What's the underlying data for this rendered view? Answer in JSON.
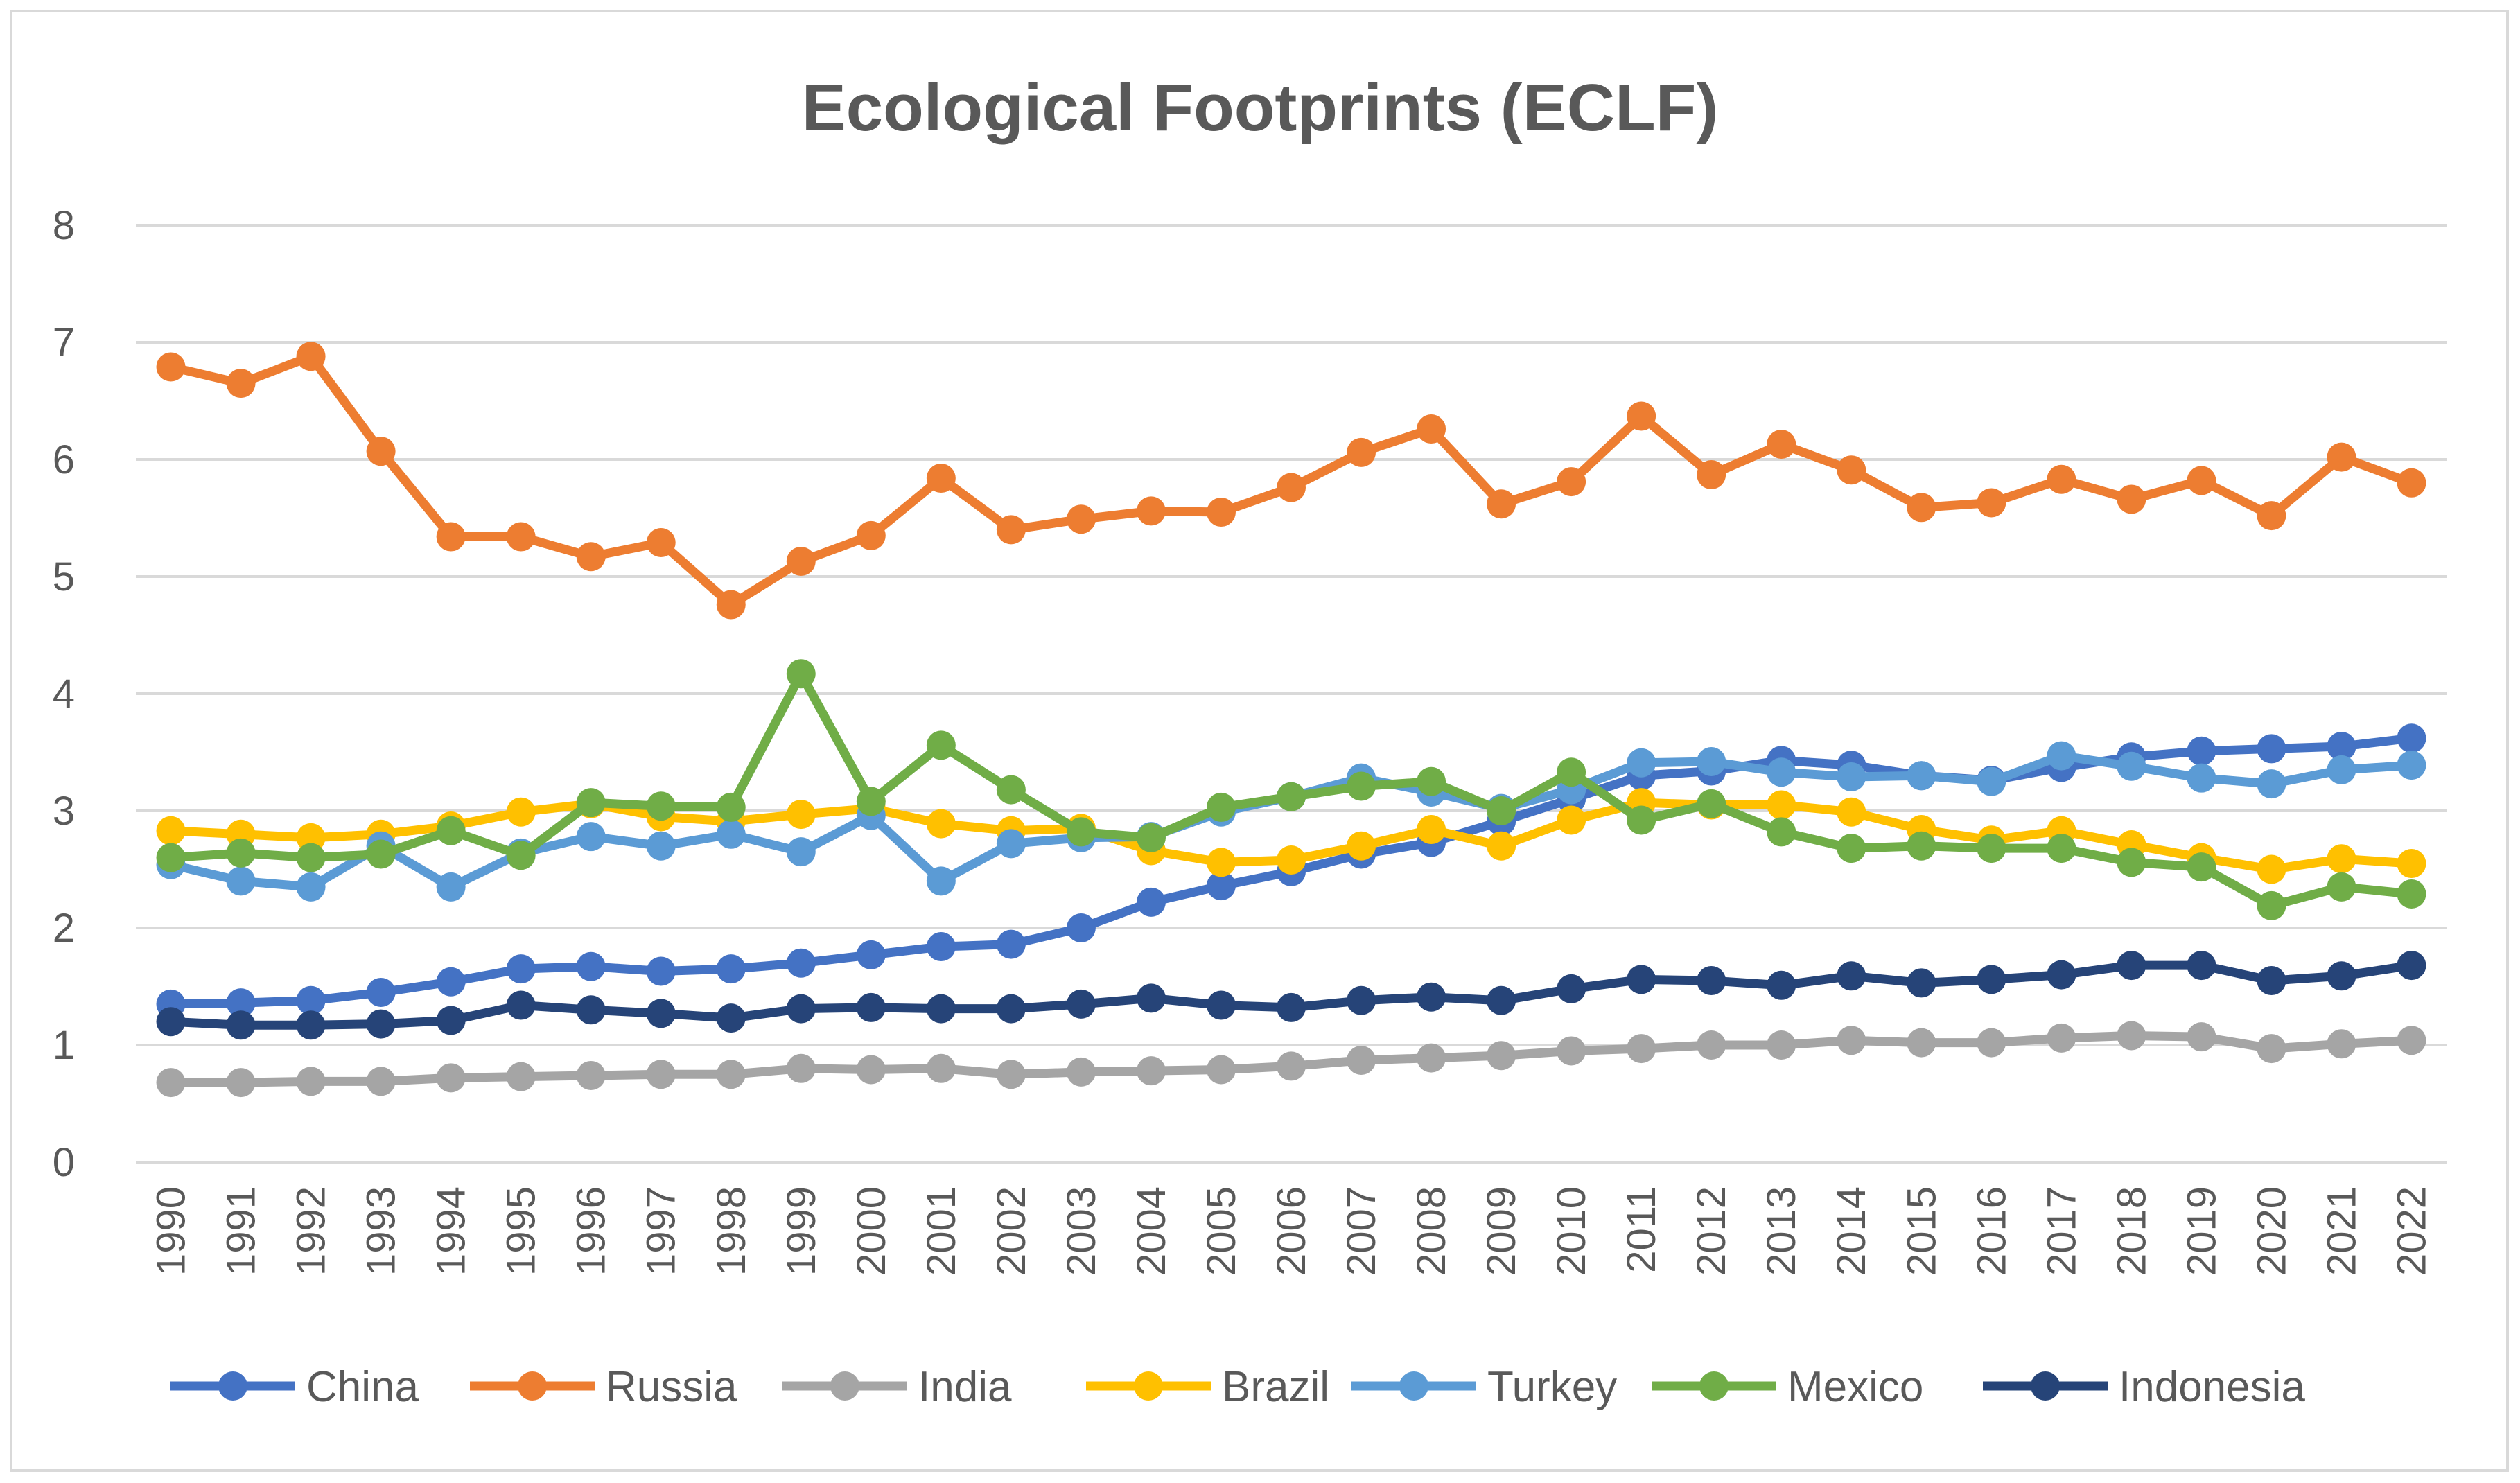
{
  "chart_data": {
    "type": "line",
    "title": "Ecological Footprints (ECLF)",
    "xlabel": "",
    "ylabel": "",
    "ylim": [
      0,
      8
    ],
    "yticks": [
      "0",
      "1",
      "2",
      "3",
      "4",
      "5",
      "6",
      "7",
      "8"
    ],
    "grid": true,
    "legend_position": "bottom",
    "categories": [
      "1990",
      "1991",
      "1992",
      "1993",
      "1994",
      "1995",
      "1996",
      "1997",
      "1998",
      "1999",
      "2000",
      "2001",
      "2002",
      "2003",
      "2004",
      "2005",
      "2006",
      "2007",
      "2008",
      "2009",
      "2010",
      "2011",
      "2012",
      "2013",
      "2014",
      "2015",
      "2016",
      "2017",
      "2018",
      "2019",
      "2020",
      "2021",
      "2022"
    ],
    "series": [
      {
        "name": "China",
        "color": "#4472c4",
        "values": [
          1.35,
          1.36,
          1.38,
          1.45,
          1.54,
          1.65,
          1.67,
          1.63,
          1.65,
          1.7,
          1.77,
          1.84,
          1.86,
          2.0,
          2.22,
          2.36,
          2.48,
          2.63,
          2.73,
          2.91,
          3.1,
          3.3,
          3.34,
          3.43,
          3.39,
          3.3,
          3.26,
          3.37,
          3.46,
          3.51,
          3.53,
          3.55,
          3.62
        ]
      },
      {
        "name": "Russia",
        "color": "#ed7d31",
        "values": [
          6.79,
          6.65,
          6.88,
          6.07,
          5.34,
          5.34,
          5.17,
          5.29,
          4.76,
          5.13,
          5.35,
          5.84,
          5.4,
          5.49,
          5.56,
          5.55,
          5.76,
          6.06,
          6.26,
          5.62,
          5.81,
          6.37,
          5.87,
          6.13,
          5.91,
          5.59,
          5.63,
          5.83,
          5.66,
          5.82,
          5.52,
          6.02,
          5.8
        ]
      },
      {
        "name": "India",
        "color": "#a5a5a5",
        "values": [
          0.68,
          0.68,
          0.69,
          0.69,
          0.72,
          0.73,
          0.74,
          0.75,
          0.75,
          0.8,
          0.79,
          0.8,
          0.75,
          0.77,
          0.78,
          0.79,
          0.82,
          0.87,
          0.89,
          0.91,
          0.95,
          0.97,
          1.0,
          1.0,
          1.04,
          1.02,
          1.02,
          1.06,
          1.08,
          1.07,
          0.97,
          1.01,
          1.04
        ]
      },
      {
        "name": "Brazil",
        "color": "#ffc000",
        "values": [
          2.83,
          2.8,
          2.77,
          2.8,
          2.87,
          2.99,
          3.06,
          2.95,
          2.91,
          2.97,
          3.02,
          2.89,
          2.83,
          2.85,
          2.66,
          2.56,
          2.58,
          2.7,
          2.84,
          2.7,
          2.92,
          3.07,
          3.05,
          3.05,
          2.99,
          2.84,
          2.75,
          2.83,
          2.71,
          2.6,
          2.5,
          2.59,
          2.55
        ]
      },
      {
        "name": "Turkey",
        "color": "#5b9bd5",
        "values": [
          2.54,
          2.4,
          2.35,
          2.7,
          2.35,
          2.64,
          2.78,
          2.7,
          2.8,
          2.65,
          2.96,
          2.4,
          2.72,
          2.77,
          2.78,
          2.99,
          3.12,
          3.28,
          3.16,
          3.02,
          3.18,
          3.41,
          3.42,
          3.33,
          3.29,
          3.3,
          3.25,
          3.47,
          3.38,
          3.28,
          3.23,
          3.35,
          3.39
        ]
      },
      {
        "name": "Mexico",
        "color": "#70ad47",
        "values": [
          2.6,
          2.64,
          2.6,
          2.63,
          2.83,
          2.62,
          3.07,
          3.04,
          3.03,
          4.17,
          3.08,
          3.56,
          3.18,
          2.82,
          2.77,
          3.03,
          3.12,
          3.21,
          3.25,
          3.0,
          3.33,
          2.92,
          3.06,
          2.82,
          2.68,
          2.7,
          2.68,
          2.68,
          2.56,
          2.52,
          2.19,
          2.35,
          2.29
        ]
      },
      {
        "name": "Indonesia",
        "color": "#264478",
        "values": [
          1.2,
          1.17,
          1.17,
          1.18,
          1.21,
          1.34,
          1.3,
          1.27,
          1.23,
          1.31,
          1.32,
          1.31,
          1.31,
          1.35,
          1.4,
          1.34,
          1.32,
          1.38,
          1.41,
          1.38,
          1.48,
          1.56,
          1.55,
          1.51,
          1.59,
          1.53,
          1.56,
          1.6,
          1.68,
          1.68,
          1.55,
          1.59,
          1.68
        ]
      }
    ]
  }
}
